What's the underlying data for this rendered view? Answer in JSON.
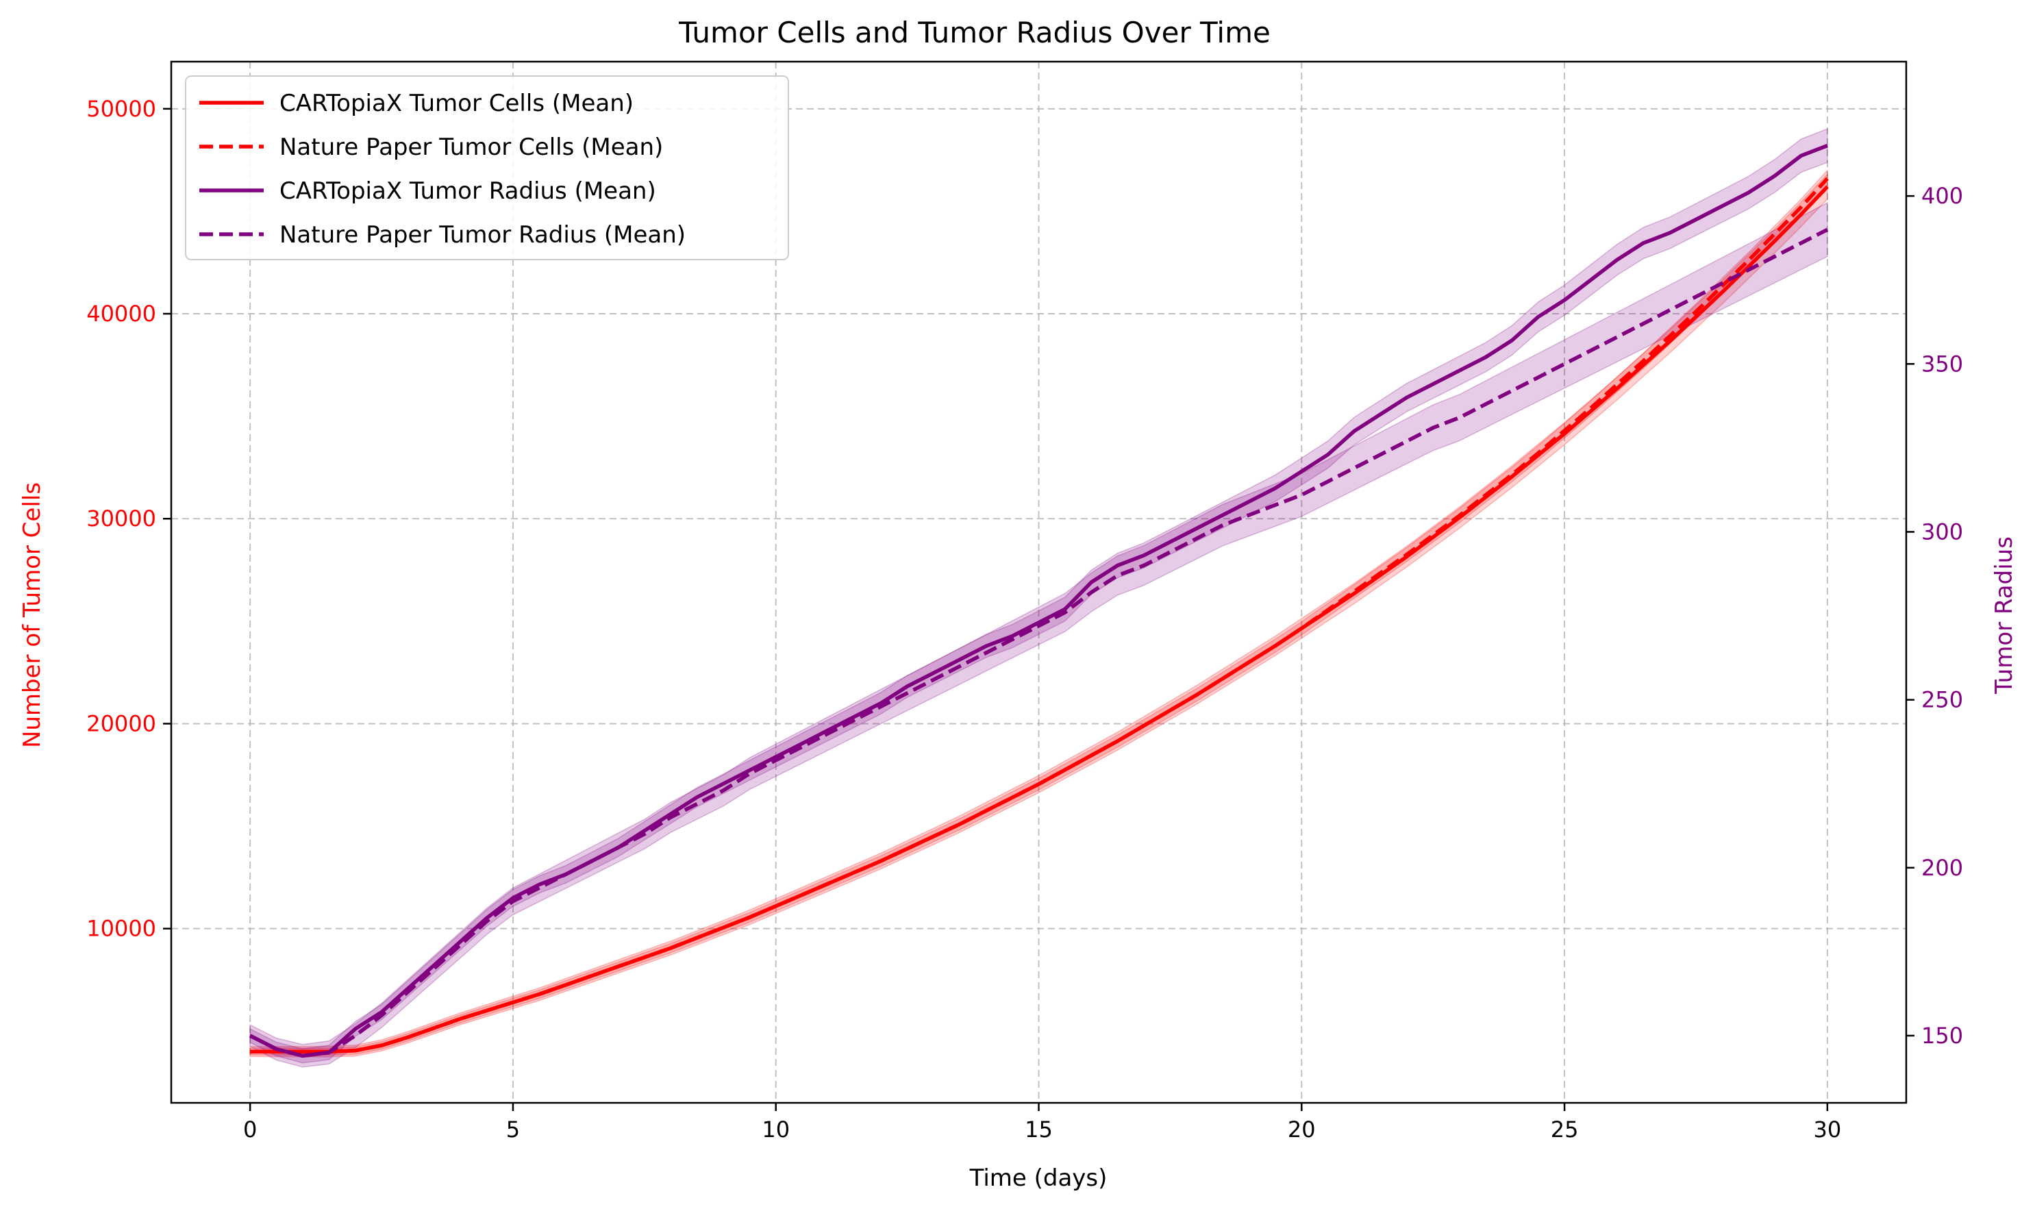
{
  "chart_data": {
    "type": "line",
    "title": "Tumor Cells and Tumor Radius Over Time",
    "xlabel": "Time (days)",
    "ylabel_left": "Number of Tumor Cells",
    "ylabel_right": "Tumor Radius",
    "xlim": [
      -1.5,
      31.5
    ],
    "ylim_left": [
      1500,
      52300
    ],
    "ylim_right": [
      130,
      440
    ],
    "xticks": [
      0,
      5,
      10,
      15,
      20,
      25,
      30
    ],
    "yticks_left": [
      10000,
      20000,
      30000,
      40000,
      50000
    ],
    "yticks_right": [
      150,
      200,
      250,
      300,
      350,
      400
    ],
    "grid": true,
    "legend_position": "top-left",
    "left_axis_color": "#ff0000",
    "right_axis_color": "#800080",
    "x": [
      0,
      0.5,
      1,
      1.5,
      2,
      2.5,
      3,
      3.5,
      4,
      4.5,
      5,
      5.5,
      6,
      6.5,
      7,
      7.5,
      8,
      8.5,
      9,
      9.5,
      10,
      10.5,
      11,
      11.5,
      12,
      12.5,
      13,
      13.5,
      14,
      14.5,
      15,
      15.5,
      16,
      16.5,
      17,
      17.5,
      18,
      18.5,
      19,
      19.5,
      20,
      20.5,
      21,
      21.5,
      22,
      22.5,
      23,
      23.5,
      24,
      24.5,
      25,
      25.5,
      26,
      26.5,
      27,
      27.5,
      28,
      28.5,
      29,
      29.5,
      30
    ],
    "series": [
      {
        "name": "CARTopiaX Tumor Cells (Mean)",
        "axis": "left",
        "color": "#ff0000",
        "style": "solid",
        "values": [
          4000,
          4000,
          4000,
          4000,
          4050,
          4300,
          4700,
          5150,
          5600,
          6000,
          6400,
          6800,
          7250,
          7700,
          8150,
          8600,
          9050,
          9550,
          10050,
          10550,
          11100,
          11650,
          12200,
          12750,
          13300,
          13900,
          14500,
          15100,
          15750,
          16400,
          17050,
          17750,
          18450,
          19150,
          19900,
          20650,
          21400,
          22200,
          23000,
          23800,
          24650,
          25500,
          26350,
          27250,
          28150,
          29100,
          30050,
          31050,
          32050,
          33100,
          34150,
          35250,
          36350,
          37500,
          38650,
          39850,
          41050,
          42300,
          43550,
          44850,
          46200
        ],
        "band": 600
      },
      {
        "name": "Nature Paper Tumor Cells (Mean)",
        "axis": "left",
        "color": "#ff0000",
        "style": "dashed",
        "values": [
          4000,
          4000,
          4000,
          4000,
          4050,
          4300,
          4700,
          5150,
          5600,
          6000,
          6400,
          6800,
          7250,
          7700,
          8150,
          8600,
          9050,
          9550,
          10050,
          10550,
          11100,
          11650,
          12200,
          12750,
          13300,
          13900,
          14500,
          15100,
          15750,
          16400,
          17050,
          17750,
          18450,
          19150,
          19900,
          20650,
          21400,
          22200,
          23000,
          23800,
          24650,
          25550,
          26450,
          27350,
          28250,
          29200,
          30150,
          31150,
          32150,
          33200,
          34300,
          35400,
          36550,
          37700,
          38900,
          40100,
          41350,
          42600,
          43900,
          45200,
          46600
        ],
        "band": 400
      },
      {
        "name": "CARTopiaX Tumor Radius (Mean)",
        "axis": "right",
        "color": "#800080",
        "style": "solid",
        "values": [
          150,
          146,
          144,
          145,
          152,
          157,
          164,
          171,
          178,
          185,
          191,
          195,
          198,
          202,
          206,
          211,
          216,
          221,
          225,
          229,
          233,
          237,
          241,
          245,
          249,
          254,
          258,
          262,
          266,
          269,
          273,
          277,
          285,
          290,
          293,
          297,
          301,
          305,
          309,
          313,
          318,
          323,
          330,
          335,
          340,
          344,
          348,
          352,
          357,
          364,
          369,
          375,
          381,
          386,
          389,
          393,
          397,
          401,
          406,
          412,
          415
        ],
        "band": 5
      },
      {
        "name": "Nature Paper Tumor Radius (Mean)",
        "axis": "right",
        "color": "#800080",
        "style": "dashed",
        "values": [
          150,
          146,
          144,
          145,
          150,
          156,
          163,
          170,
          177,
          184,
          190,
          194,
          198,
          202,
          206,
          210,
          215,
          219,
          223,
          228,
          232,
          236,
          240,
          244,
          248,
          252,
          256,
          260,
          264,
          268,
          272,
          276,
          282,
          287,
          290,
          294,
          298,
          302,
          305,
          308,
          311,
          315,
          319,
          323,
          327,
          331,
          334,
          338,
          342,
          346,
          350,
          354,
          358,
          362,
          366,
          370,
          374,
          378,
          382,
          386,
          390
        ],
        "band": 8
      }
    ]
  }
}
